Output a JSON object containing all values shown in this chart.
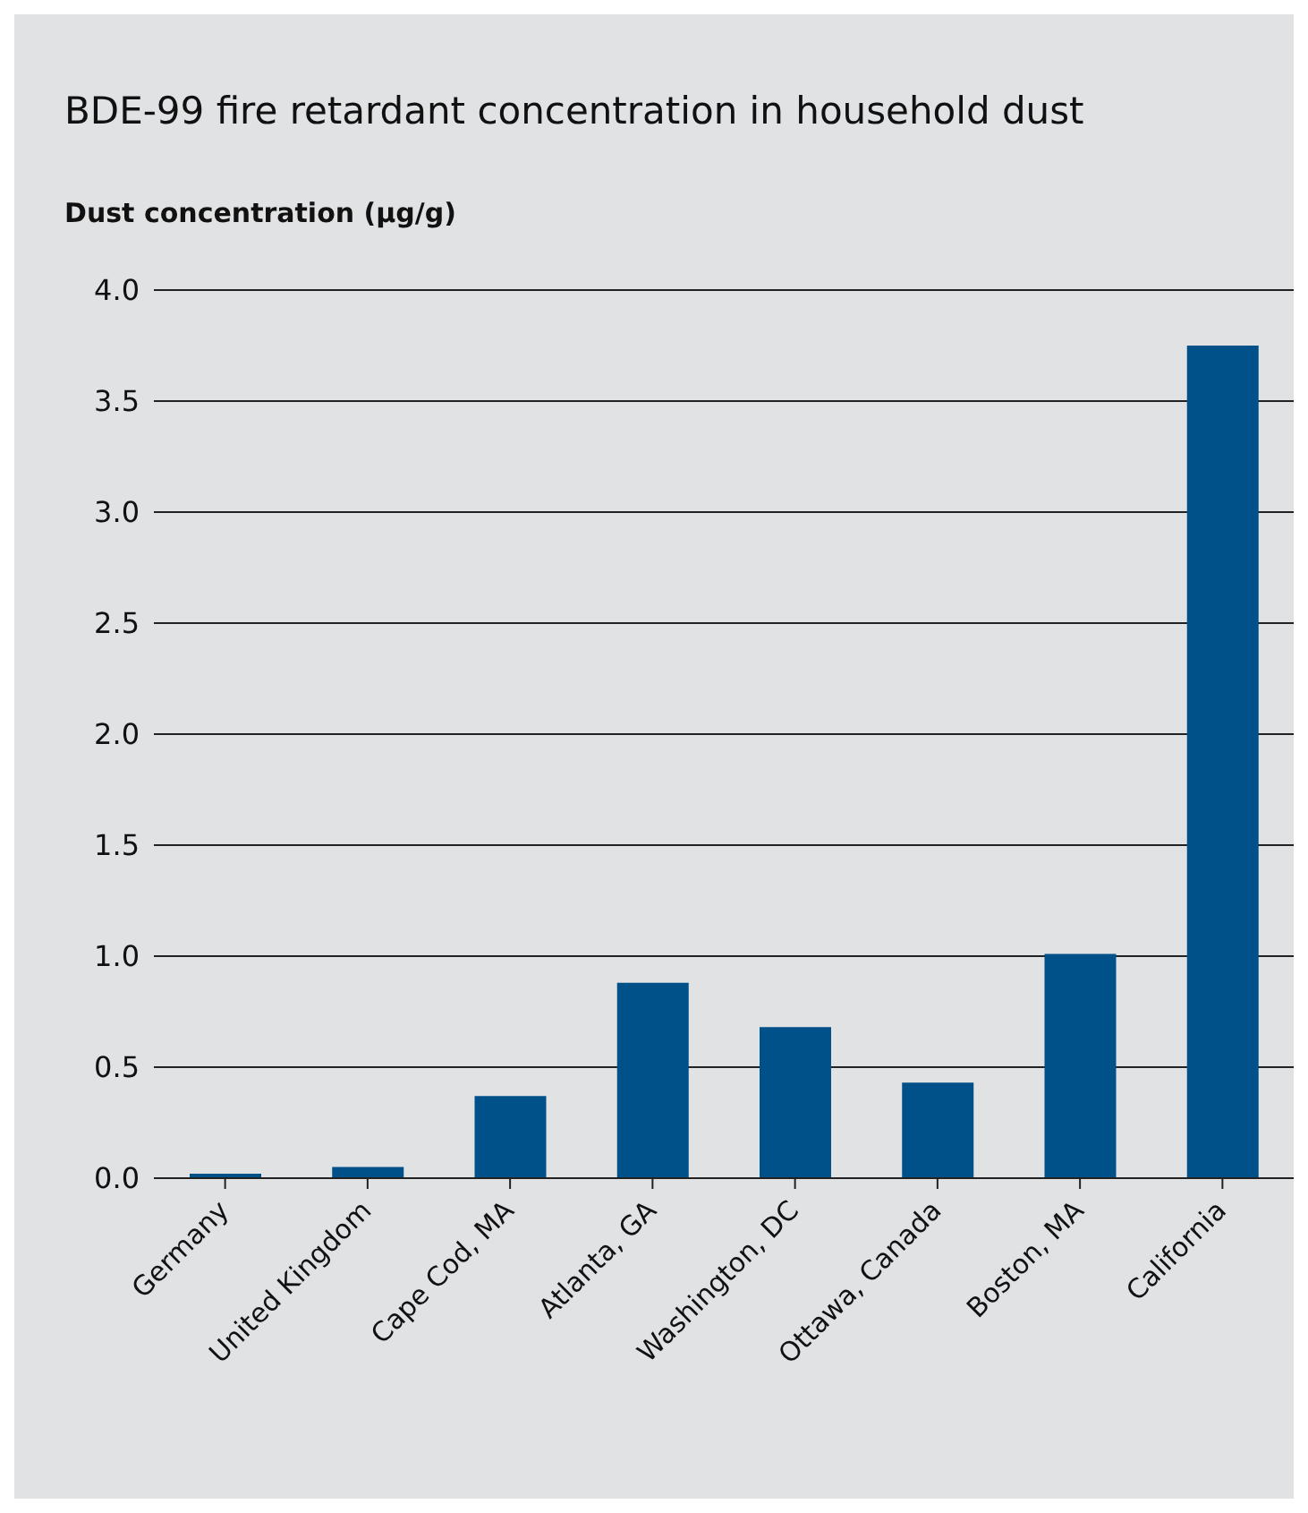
{
  "chart_data": {
    "type": "bar",
    "title": "BDE-99 fire retardant concentration in household dust",
    "ylabel": "Dust concentration (µg/g)",
    "categories": [
      "Germany",
      "United Kingdom",
      "Cape Cod, MA",
      "Atlanta, GA",
      "Washington, DC",
      "Ottawa, Canada",
      "Boston, MA",
      "California"
    ],
    "values": [
      0.02,
      0.05,
      0.37,
      0.88,
      0.68,
      0.43,
      1.01,
      3.75
    ],
    "color": "#00508a",
    "ylim": [
      0,
      4
    ],
    "yticks": [
      {
        "value": 0,
        "label": "0.0"
      },
      {
        "value": 0.5,
        "label": "0.5"
      },
      {
        "value": 1,
        "label": "1.0"
      },
      {
        "value": 1.5,
        "label": "1.5"
      },
      {
        "value": 2,
        "label": "2.0"
      },
      {
        "value": 2.5,
        "label": "2.5"
      },
      {
        "value": 3,
        "label": "3.0"
      },
      {
        "value": 3.5,
        "label": "3.5"
      },
      {
        "value": 4,
        "label": "4.0"
      }
    ],
    "grid": "y"
  }
}
